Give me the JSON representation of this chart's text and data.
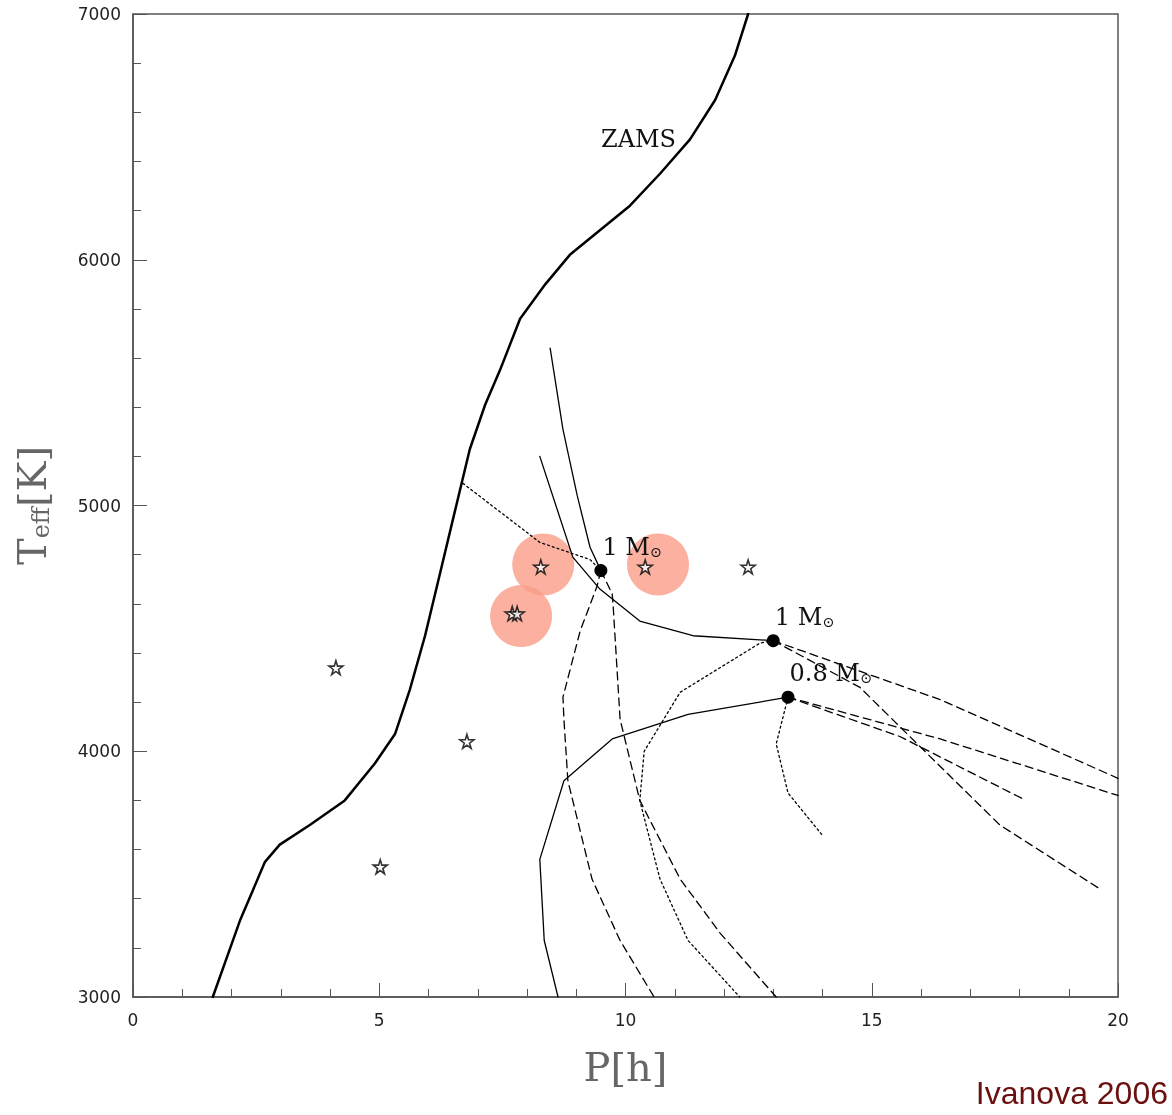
{
  "chart_data": {
    "type": "line",
    "xlabel": "P[h]",
    "ylabel": "T$_{eff}$[K]",
    "xlim": [
      0,
      20
    ],
    "xticks": [
      0,
      5,
      10,
      15,
      20
    ],
    "ylim": [
      3000,
      7000
    ],
    "yticks": [
      3000,
      4000,
      5000,
      6000,
      7000
    ],
    "grid": false,
    "marker": "none",
    "series": [
      {
        "name": "ZAMS",
        "color": "#000000",
        "line_style": "solid",
        "x": [
          1.62,
          2.17,
          2.68,
          2.98,
          3.59,
          4.3,
          4.91,
          5.32,
          5.62,
          5.93,
          6.23,
          6.54,
          6.84,
          7.15,
          7.45,
          7.86,
          8.37,
          8.87,
          9.48,
          10.09,
          10.7,
          11.31,
          11.82,
          12.22,
          12.49
        ],
        "values": [
          3000,
          3310,
          3550,
          3620,
          3700,
          3800,
          3950,
          4070,
          4250,
          4470,
          4720,
          4980,
          5230,
          5410,
          5550,
          5760,
          5900,
          6020,
          6120,
          6220,
          6350,
          6490,
          6650,
          6830,
          7000
        ]
      },
      {
        "color": "#000000",
        "line_style": "solid",
        "x": [
          8.47,
          8.73,
          9.02,
          9.28,
          9.5
        ],
        "values": [
          5640,
          5310,
          5040,
          4830,
          4735
        ]
      },
      {
        "color": "#000000",
        "line_style": "solid",
        "x": [
          8.26,
          8.93,
          9.48,
          10.29,
          11.37,
          13.0
        ],
        "values": [
          5200,
          4790,
          4660,
          4530,
          4470,
          4450
        ]
      },
      {
        "color": "#000000",
        "line_style": "dashed",
        "x": [
          9.5,
          9.73,
          9.75,
          9.89,
          10.29,
          11.11,
          11.92,
          13.06
        ],
        "values": [
          4735,
          4640,
          4590,
          4130,
          3800,
          3480,
          3260,
          3000
        ]
      },
      {
        "color": "#000000",
        "line_style": "dashed",
        "x": [
          9.5,
          9.42,
          9.08,
          8.73,
          8.75,
          8.83,
          9.32,
          9.89,
          10.58
        ],
        "values": [
          4735,
          4670,
          4490,
          4220,
          4130,
          3880,
          3480,
          3230,
          3000
        ]
      },
      {
        "color": "#000000",
        "line_style": "dotted",
        "x": [
          6.7,
          8.26,
          9.28,
          9.5
        ],
        "values": [
          5090,
          4850,
          4780,
          4735
        ]
      },
      {
        "color": "#000000",
        "line_style": "dotted",
        "x": [
          13.0,
          12.73,
          11.11,
          10.38,
          10.29,
          10.7,
          11.27,
          12.32
        ],
        "values": [
          4450,
          4440,
          4240,
          4000,
          3800,
          3480,
          3230,
          3000
        ]
      },
      {
        "color": "#000000",
        "line_style": "solid",
        "x": [
          13.3,
          11.27,
          9.73,
          8.75,
          8.26,
          8.35,
          8.63
        ],
        "values": [
          4220,
          4150,
          4050,
          3880,
          3560,
          3230,
          3000
        ]
      },
      {
        "color": "#000000",
        "line_style": "dotted",
        "x": [
          13.3,
          13.06,
          13.3,
          13.99
        ],
        "values": [
          4220,
          4030,
          3830,
          3660
        ]
      },
      {
        "color": "#000000",
        "line_style": "dashed",
        "x": [
          13.0,
          16.39,
          20.0
        ],
        "values": [
          4450,
          4210,
          3890
        ]
      },
      {
        "color": "#000000",
        "line_style": "dashed",
        "x": [
          13.0,
          14.76,
          15.57,
          17.6,
          19.63
        ],
        "values": [
          4450,
          4260,
          4100,
          3700,
          3440
        ]
      },
      {
        "color": "#000000",
        "line_style": "dashed",
        "x": [
          13.3,
          16.39,
          20.0
        ],
        "values": [
          4220,
          4050,
          3820
        ]
      },
      {
        "color": "#000000",
        "line_style": "dashed",
        "x": [
          13.3,
          15.57,
          18.13
        ],
        "values": [
          4220,
          4060,
          3800
        ]
      },
      {
        "type": "scatter",
        "marker": "circle",
        "color": "#fa9c88",
        "x": [
          8.33,
          7.88,
          10.66
        ],
        "values": [
          4760,
          4550,
          4760
        ]
      },
      {
        "type": "scatter",
        "marker": "star",
        "color": "#000000",
        "x": [
          4.12,
          5.02,
          6.78,
          7.7,
          7.8,
          8.28,
          10.4,
          12.49
        ],
        "values": [
          4340,
          3530,
          4040,
          4560,
          4560,
          4750,
          4750,
          4750
        ]
      },
      {
        "name": "1 M$_{⊙}$",
        "type": "scatter",
        "marker": "circle",
        "color": "#000000",
        "x": [
          9.5
        ],
        "values": [
          4735
        ]
      },
      {
        "name": "1 M$_{⊙}$",
        "type": "scatter",
        "marker": "circle",
        "color": "#000000",
        "x": [
          13.0
        ],
        "values": [
          4450
        ]
      },
      {
        "name": "0.8 M$_{⊙}$",
        "type": "scatter",
        "marker": "circle",
        "color": "#000000",
        "x": [
          13.3
        ],
        "values": [
          4220
        ]
      }
    ],
    "annotations": [
      "Ivanova 2006"
    ]
  }
}
